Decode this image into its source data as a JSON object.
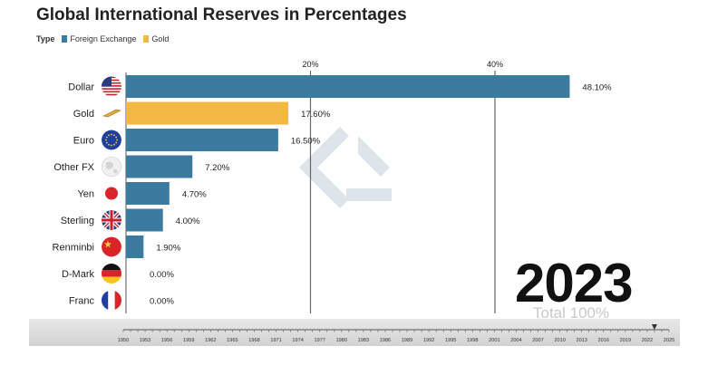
{
  "title": "Global International Reserves in Percentages",
  "legend": {
    "label": "Type",
    "items": [
      {
        "name": "Foreign Exchange",
        "color": "#3b7ba0"
      },
      {
        "name": "Gold",
        "color": "#f2b744"
      }
    ]
  },
  "year": "2023",
  "total": "Total 100%",
  "colors": {
    "foreign_exchange": "#3b7ba0",
    "gold": "#f2b744",
    "gridline": "#666666"
  },
  "chart_data": {
    "type": "bar",
    "orientation": "horizontal",
    "title": "Global International Reserves in Percentages",
    "xlim": [
      0,
      50
    ],
    "x_ticks": [
      20,
      40
    ],
    "x_tick_labels": [
      "20%",
      "40%"
    ],
    "grid": true,
    "legend_position": "top-left",
    "categories": [
      "Dollar",
      "Gold",
      "Euro",
      "Other FX",
      "Yen",
      "Sterling",
      "Renminbi",
      "D-Mark",
      "Franc"
    ],
    "values": [
      48.1,
      17.6,
      16.5,
      7.2,
      4.7,
      4.0,
      1.9,
      0.0,
      0.0
    ],
    "value_labels": [
      "48.10%",
      "17.60%",
      "16.50%",
      "7.20%",
      "4.70%",
      "4.00%",
      "1.90%",
      "0.00%",
      "0.00%"
    ],
    "types": [
      "Foreign Exchange",
      "Gold",
      "Foreign Exchange",
      "Foreign Exchange",
      "Foreign Exchange",
      "Foreign Exchange",
      "Foreign Exchange",
      "Foreign Exchange",
      "Foreign Exchange"
    ],
    "icons": [
      "us-flag-icon",
      "gold-bar-icon",
      "eu-flag-icon",
      "globe-icon",
      "japan-flag-icon",
      "uk-flag-icon",
      "china-flag-icon",
      "germany-flag-icon",
      "france-flag-icon"
    ]
  },
  "timeline": {
    "years": [
      "1950",
      "1953",
      "1956",
      "1959",
      "1962",
      "1965",
      "1968",
      "1971",
      "1974",
      "1977",
      "1980",
      "1983",
      "1986",
      "1989",
      "1992",
      "1995",
      "1998",
      "2001",
      "2004",
      "2007",
      "2010",
      "2013",
      "2016",
      "2019",
      "2022",
      "2025"
    ],
    "start": 1950,
    "end": 2025,
    "current": 2023
  }
}
